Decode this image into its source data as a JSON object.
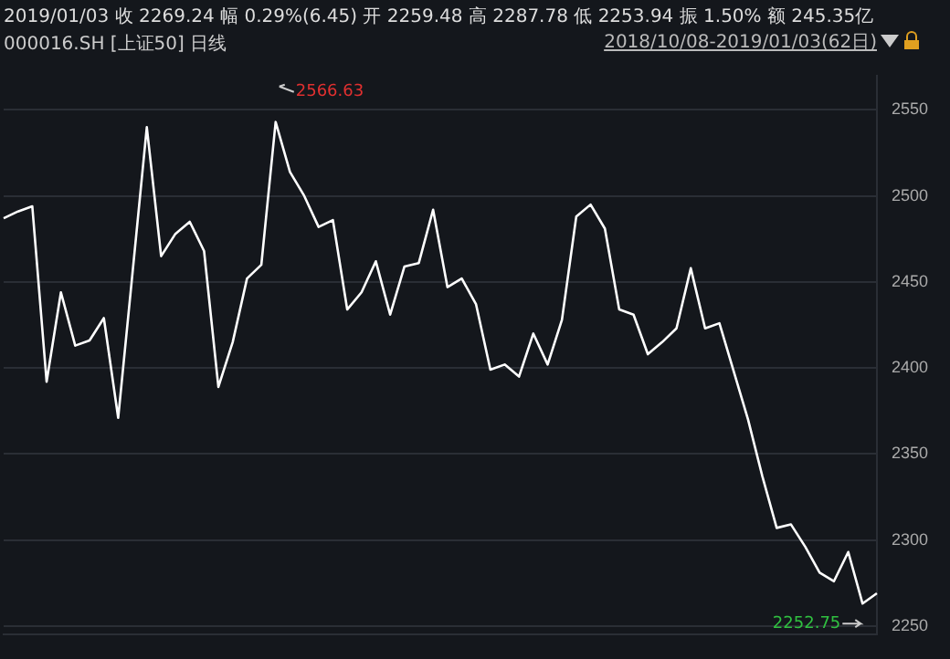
{
  "chart_data": {
    "type": "line",
    "title": "2019/01/03  收 2269.24  幅 0.29%(6.45)  开 2259.48  高 2287.78  低 2253.94  振 1.50%  额 245.35亿",
    "subtitle": "000016.SH [上证50] 日线",
    "annotations": [
      "2018/10/08-2019/01/03(62日)",
      "2566.63",
      "2252.75"
    ],
    "categories": [
      null,
      null,
      null,
      null,
      null,
      null,
      null,
      null,
      null,
      null,
      null,
      null,
      null,
      null,
      null,
      null,
      null,
      null,
      null,
      null,
      null,
      null,
      null,
      null,
      null,
      null,
      null,
      null,
      null,
      null,
      null,
      null,
      null,
      null,
      null,
      null,
      null,
      null,
      null,
      null,
      null,
      null,
      null,
      null,
      null,
      null,
      null,
      null,
      null,
      null,
      null,
      null,
      null,
      null,
      null,
      null,
      null,
      null,
      null,
      null,
      null,
      null
    ],
    "series": [
      {
        "color": "#ffffff",
        "values": [
          2487,
          2491,
          2494,
          2392,
          2444,
          2413,
          2416,
          2429,
          2371,
          2455,
          2540,
          2465,
          2478,
          2485,
          2468,
          2389,
          2415,
          2452,
          2460,
          2543,
          2514,
          2500,
          2482,
          2486,
          2434,
          2444,
          2462,
          2431,
          2459,
          2461,
          2492,
          2447,
          2452,
          2437,
          2399,
          2402,
          2395,
          2420,
          2402,
          2428,
          2488,
          2495,
          2481,
          2434,
          2431,
          2408,
          2415,
          2423,
          2458,
          2423,
          2426,
          2398,
          2370,
          2337,
          2307,
          2309,
          2296,
          2281,
          2276,
          2293,
          2263,
          2269
        ]
      }
    ],
    "ylim": [
      2245,
      2570
    ],
    "yticks": [
      2250,
      2300,
      2350,
      2400,
      2450,
      2500,
      2550
    ],
    "grid": "y",
    "legend": false,
    "marker": "none",
    "line_style": "solid"
  }
}
